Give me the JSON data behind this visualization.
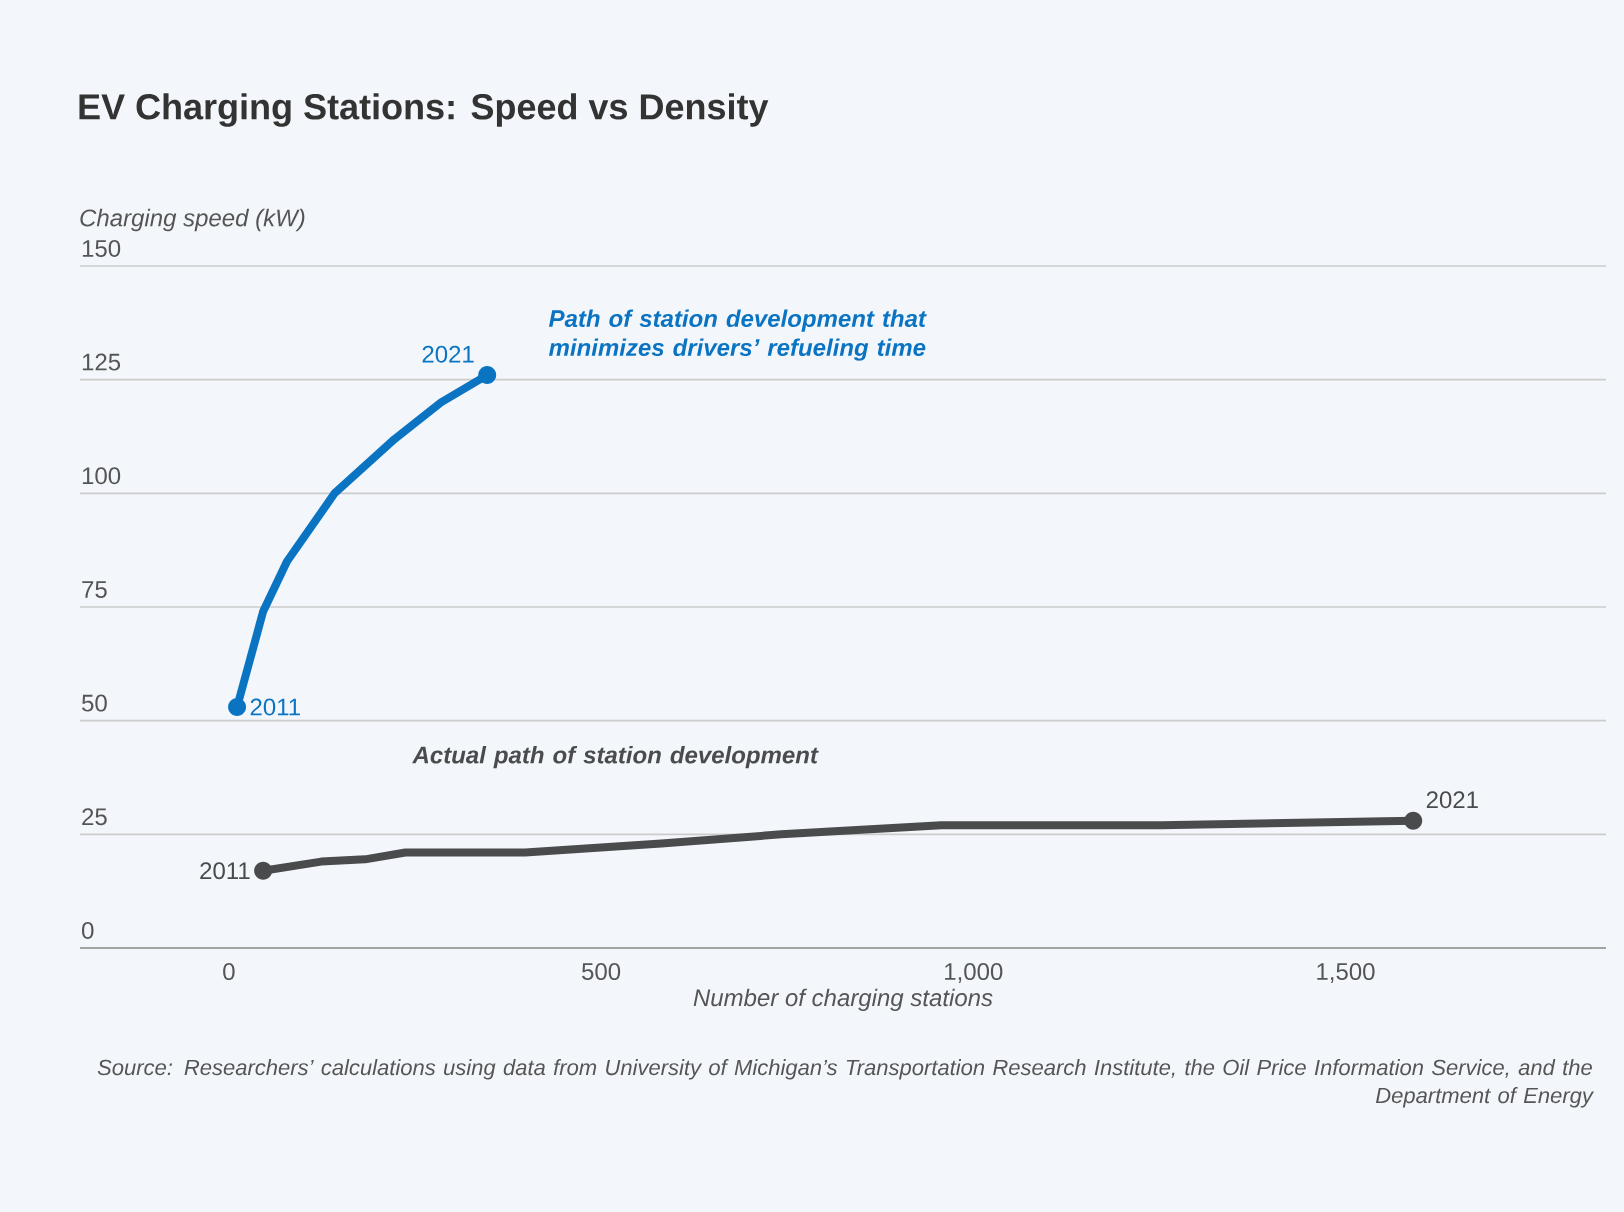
{
  "chart_data": {
    "type": "line",
    "title": "EV Charging Stations: Speed vs Density",
    "ylabel": "Charging speed (kW)",
    "xlabel": "Number of charging stations",
    "xlim": [
      -200,
      1850
    ],
    "ylim": [
      0,
      150
    ],
    "xticks": [
      0,
      500,
      {
        "value": 1000,
        "label": "1,000"
      },
      {
        "value": 1500,
        "label": "1,500"
      }
    ],
    "yticks": [
      0,
      25,
      50,
      75,
      100,
      125,
      150
    ],
    "grid": "y",
    "line_style": "solid",
    "series": [
      {
        "name": "Path of station development that minimizes drivers’ refueling time",
        "color": "#0a74c2",
        "x": [
          11,
          46,
          78,
          142,
          223,
          285,
          347
        ],
        "values": [
          53,
          74,
          85,
          100,
          112,
          120,
          126
        ]
      },
      {
        "name": "Actual path of station development",
        "color": "#4a4b4d",
        "x": [
          46,
          124,
          183,
          237,
          398,
          581,
          742,
          957,
          1253,
          1591
        ],
        "values": [
          17,
          19,
          19.5,
          21,
          21,
          23,
          25,
          27,
          27,
          28
        ]
      }
    ],
    "annotations": [
      {
        "text": "2011",
        "x": 11,
        "y": 53
      },
      {
        "text": "2021",
        "x": 347,
        "y": 126
      },
      {
        "text": "2011",
        "x": 46,
        "y": 17
      },
      {
        "text": "2021",
        "x": 1591,
        "y": 28
      },
      "Source: Researchers’ calculations using data from University of Michigan’s Transportation Research Institute, the Oil Price Information Service, and the Department of Energy"
    ]
  }
}
